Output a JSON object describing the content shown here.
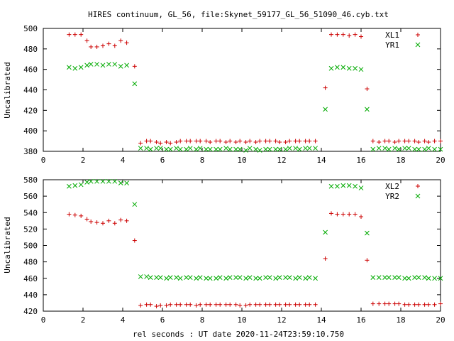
{
  "figure": {
    "title": "HIRES continuum, GL_56, file:Skynet_59177_GL_56_51090_46.cyb.txt",
    "xlabel": "rel seconds : UT date 2020-11-24T23:59:10.750"
  },
  "chart_data": [
    {
      "type": "scatter",
      "ylabel": "Uncalibrated",
      "xlim": [
        0,
        20
      ],
      "ylim": [
        380,
        500
      ],
      "xticks": [
        "0",
        "2",
        "4",
        "6",
        "8",
        "10",
        "12",
        "14",
        "16",
        "18",
        "20"
      ],
      "yticks": [
        "380",
        "400",
        "420",
        "440",
        "460",
        "480",
        "500"
      ],
      "legend_position": "top-right",
      "grid": false,
      "series": [
        {
          "name": "XL1",
          "marker": "plus",
          "color": "#cc0000",
          "x": [
            1.3,
            1.6,
            1.9,
            2.2,
            2.4,
            2.7,
            3.0,
            3.3,
            3.6,
            3.9,
            4.2,
            4.6,
            4.9,
            5.2,
            5.4,
            5.7,
            5.9,
            6.2,
            6.4,
            6.7,
            6.9,
            7.2,
            7.4,
            7.7,
            7.9,
            8.2,
            8.4,
            8.7,
            8.9,
            9.2,
            9.4,
            9.7,
            9.9,
            10.2,
            10.4,
            10.7,
            10.9,
            11.2,
            11.4,
            11.7,
            11.9,
            12.2,
            12.4,
            12.7,
            12.9,
            13.2,
            13.4,
            13.7,
            14.2,
            14.5,
            14.8,
            15.1,
            15.4,
            15.7,
            16.0,
            16.3,
            16.6,
            16.9,
            17.2,
            17.4,
            17.7,
            17.9,
            18.2,
            18.4,
            18.7,
            18.9,
            19.2,
            19.4,
            19.7,
            20.0
          ],
          "y": [
            494,
            494,
            494,
            488,
            482,
            482,
            483,
            485,
            483,
            488,
            486,
            463,
            388,
            390,
            390,
            389,
            388,
            389,
            388,
            389,
            390,
            390,
            390,
            390,
            390,
            390,
            389,
            390,
            390,
            389,
            390,
            389,
            390,
            389,
            390,
            389,
            390,
            390,
            390,
            390,
            389,
            389,
            390,
            390,
            390,
            390,
            390,
            390,
            442,
            494,
            494,
            494,
            493,
            494,
            492,
            441,
            390,
            389,
            390,
            390,
            389,
            390,
            390,
            390,
            390,
            389,
            390,
            389,
            390,
            390
          ]
        },
        {
          "name": "YR1",
          "marker": "cross",
          "color": "#00aa00",
          "x": [
            1.3,
            1.6,
            1.9,
            2.2,
            2.4,
            2.7,
            3.0,
            3.3,
            3.6,
            3.9,
            4.2,
            4.6,
            4.9,
            5.2,
            5.4,
            5.7,
            5.9,
            6.2,
            6.4,
            6.7,
            6.9,
            7.2,
            7.4,
            7.7,
            7.9,
            8.2,
            8.4,
            8.7,
            8.9,
            9.2,
            9.4,
            9.7,
            9.9,
            10.2,
            10.4,
            10.7,
            10.9,
            11.2,
            11.4,
            11.7,
            11.9,
            12.2,
            12.4,
            12.7,
            12.9,
            13.2,
            13.4,
            13.7,
            14.2,
            14.5,
            14.8,
            15.1,
            15.4,
            15.7,
            16.0,
            16.3,
            16.6,
            16.9,
            17.2,
            17.4,
            17.7,
            17.9,
            18.2,
            18.4,
            18.7,
            18.9,
            19.2,
            19.4,
            19.7,
            20.0
          ],
          "y": [
            462,
            461,
            462,
            464,
            465,
            465,
            464,
            465,
            465,
            463,
            464,
            446,
            383,
            383,
            382,
            383,
            383,
            382,
            382,
            383,
            382,
            382,
            383,
            382,
            383,
            382,
            382,
            382,
            382,
            383,
            382,
            382,
            382,
            381,
            383,
            382,
            381,
            382,
            382,
            382,
            382,
            382,
            383,
            383,
            382,
            383,
            383,
            383,
            421,
            461,
            462,
            462,
            461,
            461,
            460,
            421,
            382,
            383,
            383,
            382,
            383,
            382,
            383,
            383,
            382,
            382,
            382,
            383,
            382,
            382
          ]
        }
      ]
    },
    {
      "type": "scatter",
      "ylabel": "Uncalibrated",
      "xlim": [
        0,
        20
      ],
      "ylim": [
        420,
        580
      ],
      "xticks": [
        "0",
        "2",
        "4",
        "6",
        "8",
        "10",
        "12",
        "14",
        "16",
        "18",
        "20"
      ],
      "yticks": [
        "420",
        "440",
        "460",
        "480",
        "500",
        "520",
        "540",
        "560",
        "580"
      ],
      "legend_position": "top-right",
      "grid": false,
      "series": [
        {
          "name": "XL2",
          "marker": "plus",
          "color": "#cc0000",
          "x": [
            1.3,
            1.6,
            1.9,
            2.2,
            2.4,
            2.7,
            3.0,
            3.3,
            3.6,
            3.9,
            4.2,
            4.6,
            4.9,
            5.2,
            5.4,
            5.7,
            5.9,
            6.2,
            6.4,
            6.7,
            6.9,
            7.2,
            7.4,
            7.7,
            7.9,
            8.2,
            8.4,
            8.7,
            8.9,
            9.2,
            9.4,
            9.7,
            9.9,
            10.2,
            10.4,
            10.7,
            10.9,
            11.2,
            11.4,
            11.7,
            11.9,
            12.2,
            12.4,
            12.7,
            12.9,
            13.2,
            13.4,
            13.7,
            14.2,
            14.5,
            14.8,
            15.1,
            15.4,
            15.7,
            16.0,
            16.3,
            16.6,
            16.9,
            17.2,
            17.4,
            17.7,
            17.9,
            18.2,
            18.4,
            18.7,
            18.9,
            19.2,
            19.4,
            19.7,
            20.0
          ],
          "y": [
            538,
            537,
            536,
            532,
            529,
            528,
            527,
            530,
            527,
            531,
            530,
            506,
            427,
            428,
            428,
            426,
            427,
            427,
            428,
            428,
            428,
            428,
            428,
            427,
            428,
            428,
            428,
            428,
            428,
            428,
            428,
            428,
            427,
            427,
            428,
            428,
            428,
            428,
            428,
            428,
            428,
            428,
            428,
            428,
            428,
            428,
            428,
            428,
            484,
            539,
            538,
            538,
            538,
            538,
            535,
            482,
            429,
            429,
            429,
            429,
            429,
            429,
            428,
            428,
            428,
            428,
            428,
            428,
            428,
            429
          ]
        },
        {
          "name": "YR2",
          "marker": "cross",
          "color": "#00aa00",
          "x": [
            1.3,
            1.6,
            1.9,
            2.2,
            2.4,
            2.7,
            3.0,
            3.3,
            3.6,
            3.9,
            4.2,
            4.6,
            4.9,
            5.2,
            5.4,
            5.7,
            5.9,
            6.2,
            6.4,
            6.7,
            6.9,
            7.2,
            7.4,
            7.7,
            7.9,
            8.2,
            8.4,
            8.7,
            8.9,
            9.2,
            9.4,
            9.7,
            9.9,
            10.2,
            10.4,
            10.7,
            10.9,
            11.2,
            11.4,
            11.7,
            11.9,
            12.2,
            12.4,
            12.7,
            12.9,
            13.2,
            13.4,
            13.7,
            14.2,
            14.5,
            14.8,
            15.1,
            15.4,
            15.7,
            16.0,
            16.3,
            16.6,
            16.9,
            17.2,
            17.4,
            17.7,
            17.9,
            18.2,
            18.4,
            18.7,
            18.9,
            19.2,
            19.4,
            19.7,
            20.0
          ],
          "y": [
            572,
            573,
            574,
            577,
            578,
            578,
            578,
            578,
            578,
            576,
            576,
            550,
            462,
            462,
            461,
            461,
            461,
            460,
            461,
            461,
            460,
            461,
            461,
            460,
            461,
            460,
            460,
            460,
            461,
            460,
            461,
            461,
            461,
            460,
            461,
            460,
            460,
            461,
            461,
            460,
            461,
            461,
            461,
            460,
            461,
            460,
            461,
            460,
            516,
            572,
            572,
            573,
            573,
            572,
            570,
            515,
            461,
            461,
            461,
            461,
            461,
            461,
            460,
            460,
            461,
            461,
            461,
            460,
            460,
            460
          ]
        }
      ]
    }
  ]
}
